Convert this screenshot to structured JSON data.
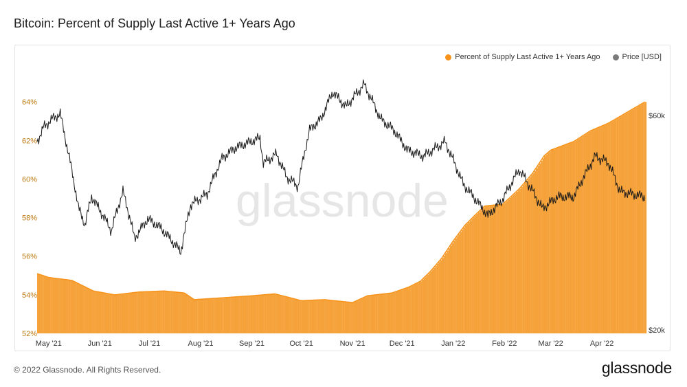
{
  "title": "Bitcoin: Percent of Supply Last Active 1+ Years Ago",
  "footer": "© 2022 Glassnode. All Rights Reserved.",
  "brand": "glassnode",
  "watermark": "glassnode",
  "colors": {
    "supply": "#f7931a",
    "supply_bar": "#f5a23a",
    "price": "#1a1a1a",
    "left_axis_text": "#c07a10",
    "right_axis_text": "#333333",
    "watermark": "#e6e6e6"
  },
  "chart_data": {
    "type": "area",
    "title": "Bitcoin: Percent of Supply Last Active 1+ Years Ago",
    "legend": {
      "placement": "top-right",
      "entries": [
        "Percent of Supply Last Active 1+ Years Ago",
        "Price [USD]"
      ]
    },
    "x_ticks": [
      "May '21",
      "Jun '21",
      "Jul '21",
      "Aug '21",
      "Sep '21",
      "Oct '21",
      "Nov '21",
      "Dec '21",
      "Jan '22",
      "Feb '22",
      "Mar '22",
      "Apr '22"
    ],
    "y_left": {
      "ticks": [
        "52%",
        "54%",
        "56%",
        "58%",
        "60%",
        "62%",
        "64%"
      ],
      "range": [
        52,
        64.4
      ],
      "unit": "%"
    },
    "y_right": {
      "ticks": [
        "$20k",
        "$60k"
      ],
      "range": [
        20000,
        65000
      ],
      "scale": "log"
    },
    "series": [
      {
        "name": "Percent of Supply Last Active 1+ Years Ago",
        "axis": "left",
        "points": [
          [
            "2021-04-24",
            55.1
          ],
          [
            "2021-05-01",
            54.9
          ],
          [
            "2021-05-15",
            54.75
          ],
          [
            "2021-05-28",
            54.2
          ],
          [
            "2021-06-10",
            54.0
          ],
          [
            "2021-06-25",
            54.15
          ],
          [
            "2021-07-10",
            54.2
          ],
          [
            "2021-07-22",
            54.1
          ],
          [
            "2021-07-28",
            53.75
          ],
          [
            "2021-08-15",
            53.85
          ],
          [
            "2021-09-01",
            53.95
          ],
          [
            "2021-09-15",
            54.05
          ],
          [
            "2021-10-01",
            53.7
          ],
          [
            "2021-10-15",
            53.75
          ],
          [
            "2021-11-01",
            53.6
          ],
          [
            "2021-11-10",
            53.95
          ],
          [
            "2021-11-25",
            54.1
          ],
          [
            "2021-12-05",
            54.4
          ],
          [
            "2021-12-12",
            54.7
          ],
          [
            "2021-12-18",
            55.2
          ],
          [
            "2021-12-25",
            55.9
          ],
          [
            "2022-01-01",
            56.8
          ],
          [
            "2022-01-08",
            57.6
          ],
          [
            "2022-01-15",
            58.2
          ],
          [
            "2022-01-20",
            58.6
          ],
          [
            "2022-01-31",
            58.7
          ],
          [
            "2022-02-10",
            59.5
          ],
          [
            "2022-02-18",
            60.3
          ],
          [
            "2022-02-25",
            61.2
          ],
          [
            "2022-03-01",
            61.5
          ],
          [
            "2022-03-15",
            61.95
          ],
          [
            "2022-03-25",
            62.5
          ],
          [
            "2022-04-05",
            62.9
          ],
          [
            "2022-04-15",
            63.4
          ],
          [
            "2022-04-27",
            64.0
          ]
        ]
      },
      {
        "name": "Price [USD]",
        "axis": "right",
        "points": [
          [
            "2021-04-24",
            51000
          ],
          [
            "2021-04-28",
            54800
          ],
          [
            "2021-05-03",
            57000
          ],
          [
            "2021-05-08",
            58500
          ],
          [
            "2021-05-12",
            50000
          ],
          [
            "2021-05-19",
            37000
          ],
          [
            "2021-05-23",
            34000
          ],
          [
            "2021-05-27",
            39000
          ],
          [
            "2021-06-08",
            33000
          ],
          [
            "2021-06-15",
            40000
          ],
          [
            "2021-06-22",
            31800
          ],
          [
            "2021-06-30",
            35000
          ],
          [
            "2021-07-08",
            33500
          ],
          [
            "2021-07-20",
            29800
          ],
          [
            "2021-07-26",
            37500
          ],
          [
            "2021-08-05",
            39500
          ],
          [
            "2021-08-14",
            47000
          ],
          [
            "2021-08-22",
            49500
          ],
          [
            "2021-09-06",
            52000
          ],
          [
            "2021-09-08",
            46000
          ],
          [
            "2021-09-16",
            48000
          ],
          [
            "2021-09-22",
            43000
          ],
          [
            "2021-09-29",
            41000
          ],
          [
            "2021-10-06",
            54000
          ],
          [
            "2021-10-13",
            57000
          ],
          [
            "2021-10-20",
            65000
          ],
          [
            "2021-10-28",
            60500
          ],
          [
            "2021-11-08",
            67500
          ],
          [
            "2021-11-18",
            57000
          ],
          [
            "2021-11-26",
            54000
          ],
          [
            "2021-12-04",
            49000
          ],
          [
            "2021-12-14",
            47500
          ],
          [
            "2021-12-27",
            51000
          ],
          [
            "2022-01-07",
            41500
          ],
          [
            "2022-01-22",
            35500
          ],
          [
            "2022-01-31",
            38500
          ],
          [
            "2022-02-10",
            44500
          ],
          [
            "2022-02-24",
            36800
          ],
          [
            "2022-03-05",
            39000
          ],
          [
            "2022-03-15",
            39000
          ],
          [
            "2022-03-28",
            47500
          ],
          [
            "2022-04-05",
            46000
          ],
          [
            "2022-04-12",
            40000
          ],
          [
            "2022-04-27",
            39000
          ]
        ]
      }
    ]
  }
}
